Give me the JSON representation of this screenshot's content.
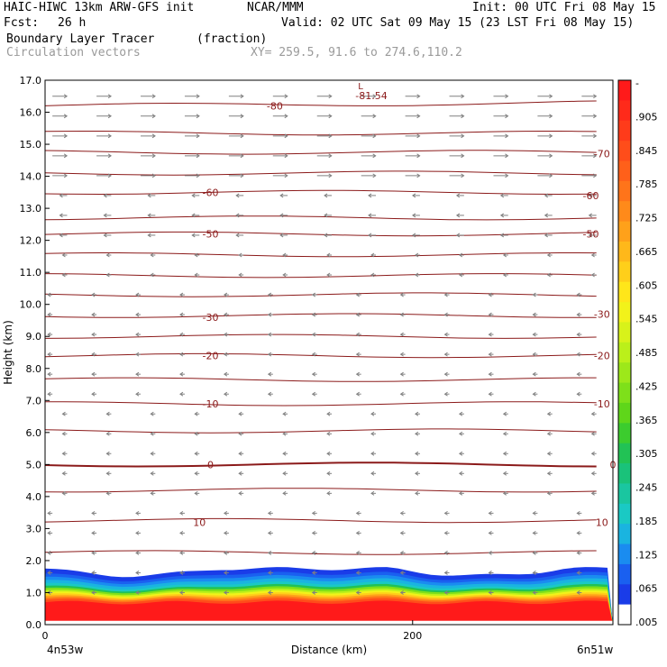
{
  "header": {
    "title": "HAIC-HIWC 13km ARW-GFS init",
    "org": "NCAR/MMM",
    "init": "Init: 00 UTC Fri 08 May 15",
    "fcst_label": "Fcst:",
    "fcst_value": "26 h",
    "valid": "Valid: 02 UTC Sat 09 May 15 (23 LST Fri 08 May 15)",
    "field1": "Boundary Layer Tracer",
    "field1_units": "(fraction)",
    "field2": "Circulation vectors",
    "xy": "XY= 259.5, 91.6 to 274.6,110.2"
  },
  "colors": {
    "contour": "#8b1a1a",
    "vector": "#808080"
  },
  "chart_data": {
    "type": "contour",
    "xlabel": "Distance (km)",
    "ylabel": "Height (km)",
    "x_tick_labels": [
      "0",
      "200"
    ],
    "x_ticks": [
      0,
      200
    ],
    "xlim": [
      0,
      309
    ],
    "ylim": [
      0,
      17
    ],
    "y_ticks": [
      "0.0",
      "1.0",
      "2.0",
      "3.0",
      "4.0",
      "5.0",
      "6.0",
      "7.0",
      "8.0",
      "9.0",
      "10.0",
      "11.0",
      "12.0",
      "13.0",
      "14.0",
      "15.0",
      "16.0",
      "17.0"
    ],
    "x_endpoints": {
      "left": "4n53w",
      "right": "6n51w"
    },
    "low_center": {
      "label": "L",
      "value": "-81.54"
    },
    "isotherm_labels": [
      {
        "text": "-80",
        "x": 125,
        "y": 16.2
      },
      {
        "text": "-70",
        "x": 303,
        "y": 14.7
      },
      {
        "text": "-60",
        "x": 90,
        "y": 13.5
      },
      {
        "text": "-60",
        "x": 297,
        "y": 13.4
      },
      {
        "text": "-50",
        "x": 90,
        "y": 12.2
      },
      {
        "text": "-50",
        "x": 297,
        "y": 12.2
      },
      {
        "text": "-30",
        "x": 90,
        "y": 9.6
      },
      {
        "text": "-30",
        "x": 303,
        "y": 9.7
      },
      {
        "text": "-20",
        "x": 90,
        "y": 8.4
      },
      {
        "text": "-20",
        "x": 303,
        "y": 8.4
      },
      {
        "text": "-10",
        "x": 90,
        "y": 6.9
      },
      {
        "text": "-10",
        "x": 303,
        "y": 6.9
      },
      {
        "text": "0",
        "x": 90,
        "y": 5.0
      },
      {
        "text": "0",
        "x": 309,
        "y": 5.0
      },
      {
        "text": "10",
        "x": 84,
        "y": 3.2
      },
      {
        "text": "10",
        "x": 303,
        "y": 3.2
      }
    ],
    "colorbar": {
      "labels": [
        "-",
        ".905",
        ".845",
        ".785",
        ".725",
        ".665",
        ".605",
        ".545",
        ".485",
        ".425",
        ".365",
        ".305",
        ".245",
        ".185",
        ".125",
        ".065",
        ".005"
      ],
      "colors": [
        "#ff1a1a",
        "#ff2a1a",
        "#ff3b1a",
        "#ff4d1a",
        "#ff601a",
        "#ff741a",
        "#ff8a1a",
        "#ffa11a",
        "#ffb81a",
        "#ffcf1a",
        "#ffe61a",
        "#f2f21a",
        "#d8f21a",
        "#bbf01a",
        "#9de81a",
        "#7ee01a",
        "#5fd61a",
        "#3ccc2e",
        "#22c255",
        "#1ac27a",
        "#1ac6a0",
        "#1ac9c4",
        "#1ab4e0",
        "#1a8cf0",
        "#1a60f0",
        "#1a3ce8",
        "#ffffff"
      ]
    }
  }
}
